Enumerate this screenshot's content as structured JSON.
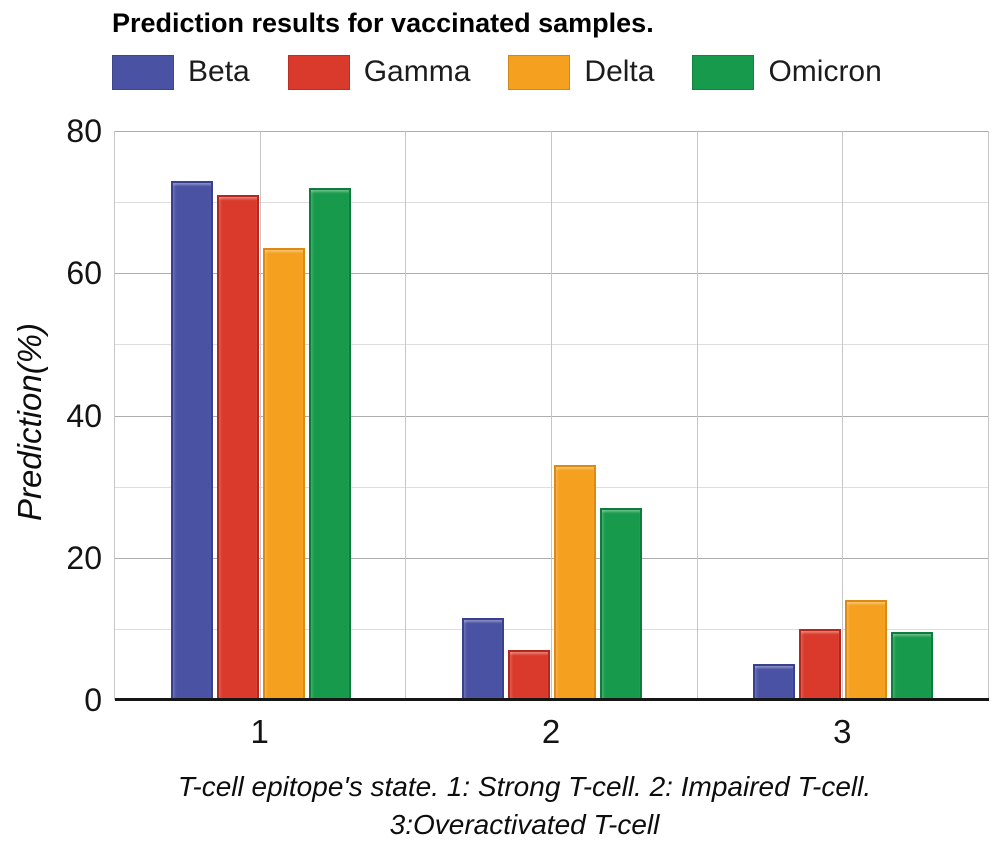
{
  "title": "Prediction results for vaccinated samples.",
  "chart_data": {
    "type": "bar",
    "title": "Prediction results for vaccinated samples.",
    "categories": [
      "1",
      "2",
      "3"
    ],
    "series": [
      {
        "name": "Beta",
        "color": "#4a52a4",
        "border_color": "#39408f",
        "values": [
          73,
          11.5,
          5
        ]
      },
      {
        "name": "Gamma",
        "color": "#d93a2b",
        "border_color": "#b3271c",
        "values": [
          71,
          7,
          10
        ]
      },
      {
        "name": "Delta",
        "color": "#f6a01f",
        "border_color": "#dd8a10",
        "values": [
          63.5,
          33,
          14
        ]
      },
      {
        "name": "Omicron",
        "color": "#179a4b",
        "border_color": "#0e7c3a",
        "values": [
          72,
          27,
          9.5
        ]
      }
    ],
    "ylabel": "Prediction(%)",
    "ylim": [
      0,
      80
    ],
    "yticks_major": [
      0,
      20,
      40,
      60,
      80
    ],
    "yticks_minor": [
      10,
      30,
      50,
      70
    ],
    "grid": true,
    "legend_position": "top",
    "caption_lines": [
      "T-cell epitope's state. 1: Strong T-cell. 2: Impaired T-cell.",
      "3:Overactivated T-cell"
    ]
  }
}
